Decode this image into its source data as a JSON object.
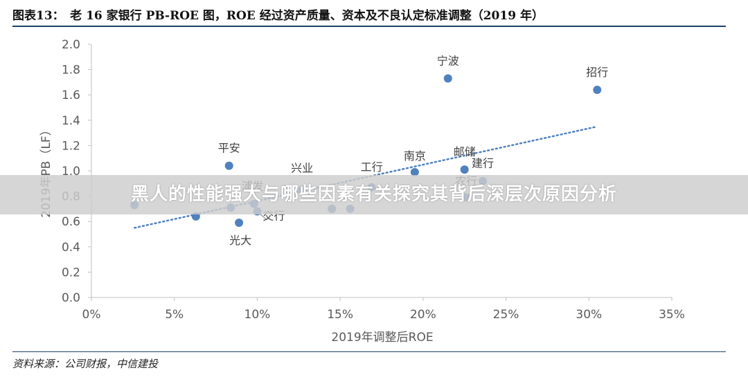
{
  "figure": {
    "title": "图表13：　老 16 家银行 PB-ROE 图，ROE 经过资产质量、资本及不良认定标准调整（2019 年）",
    "source": "资料来源：公司财报，中信建投"
  },
  "overlay": {
    "text": "黑人的性能强大与哪些因素有关探究其背后深层次原因分析"
  },
  "colors": {
    "point": "#4f81bd",
    "trend": "#4f81bd",
    "axis": "#bfbfbf",
    "tick_text": "#595959"
  },
  "chart_data": {
    "type": "scatter",
    "xlabel": "2019年调整后ROE",
    "ylabel": "2019年PB（LF）",
    "xlim": [
      0,
      35
    ],
    "ylim": [
      0,
      2.0
    ],
    "x_ticks": [
      "0%",
      "5%",
      "10%",
      "15%",
      "20%",
      "25%",
      "30%",
      "35%"
    ],
    "x_tick_values": [
      0,
      5,
      10,
      15,
      20,
      25,
      30,
      35
    ],
    "y_ticks": [
      "0.0",
      "0.2",
      "0.4",
      "0.6",
      "0.8",
      "1.0",
      "1.2",
      "1.4",
      "1.6",
      "1.8",
      "2.0"
    ],
    "y_tick_values": [
      0,
      0.2,
      0.4,
      0.6,
      0.8,
      1.0,
      1.2,
      1.4,
      1.6,
      1.8,
      2.0
    ],
    "grid": false,
    "trendline": {
      "style": "dotted",
      "x": [
        2.6,
        30.5
      ],
      "y": [
        0.55,
        1.35
      ]
    },
    "points": [
      {
        "label": "",
        "x": 2.6,
        "y": 0.73
      },
      {
        "label": "",
        "x": 6.3,
        "y": 0.64
      },
      {
        "label": "平安",
        "x": 8.3,
        "y": 1.04
      },
      {
        "label": "",
        "x": 8.4,
        "y": 0.71
      },
      {
        "label": "光大",
        "x": 8.9,
        "y": 0.59
      },
      {
        "label": "浦发",
        "x": 9.8,
        "y": 0.74
      },
      {
        "label": "交行",
        "x": 10.0,
        "y": 0.68
      },
      {
        "label": "兴业",
        "x": 12.7,
        "y": 0.85
      },
      {
        "label": "",
        "x": 14.5,
        "y": 0.7
      },
      {
        "label": "",
        "x": 15.6,
        "y": 0.7
      },
      {
        "label": "工行",
        "x": 16.9,
        "y": 0.87
      },
      {
        "label": "南京",
        "x": 19.5,
        "y": 0.99
      },
      {
        "label": "宁波",
        "x": 21.5,
        "y": 1.73
      },
      {
        "label": "邮储",
        "x": 22.5,
        "y": 1.01
      },
      {
        "label": "农行",
        "x": 22.6,
        "y": 0.79
      },
      {
        "label": "建行",
        "x": 23.6,
        "y": 0.92
      },
      {
        "label": "招行",
        "x": 30.5,
        "y": 1.64
      }
    ]
  }
}
